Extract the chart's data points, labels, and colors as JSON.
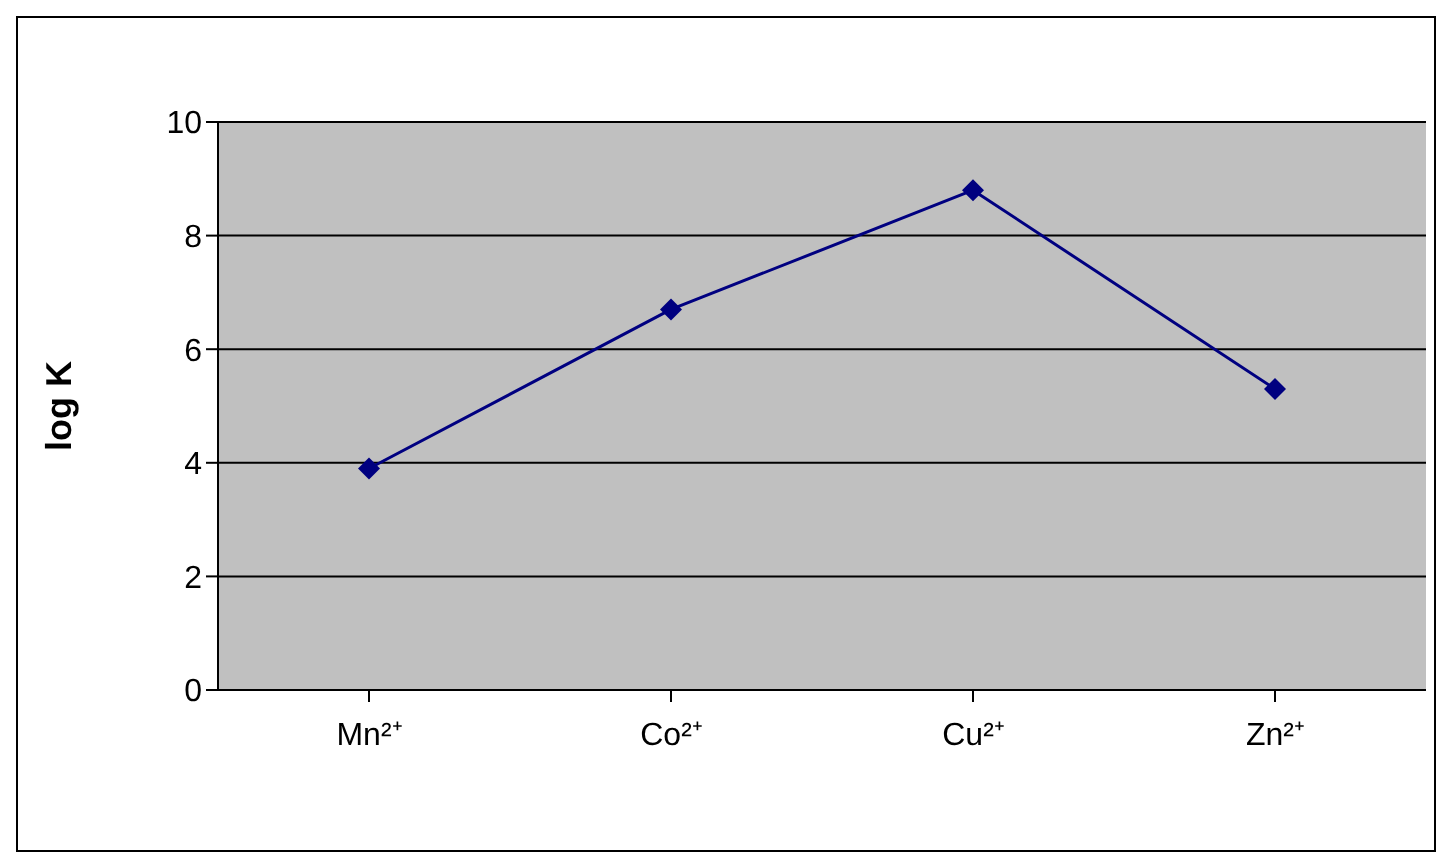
{
  "chart_data": {
    "type": "line",
    "ylabel": "log K",
    "categories": [
      "Mn²⁺",
      "Co²⁺",
      "Cu²⁺",
      "Zn²⁺"
    ],
    "series": [
      {
        "color": "#000080",
        "values": [
          3.9,
          6.7,
          8.8,
          5.3
        ]
      }
    ],
    "ylim": [
      0,
      10
    ],
    "yticks": [
      0,
      2,
      4,
      6,
      8,
      10
    ],
    "grid": "y",
    "marker": "diamond",
    "line_style": "solid"
  }
}
